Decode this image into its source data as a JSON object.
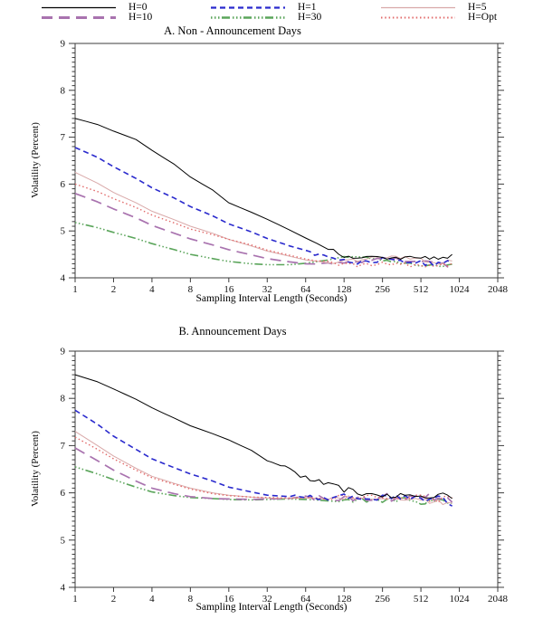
{
  "page": {
    "background": "#ffffff"
  },
  "legend": {
    "items": [
      {
        "id": "h0",
        "label": "H=0",
        "color": "#000000",
        "dash": "solid"
      },
      {
        "id": "h10",
        "label": "H=10",
        "color": "#A973AF",
        "dash": "longdash"
      },
      {
        "id": "h1",
        "label": "H=1",
        "color": "#2A2ACD",
        "dash": "dash"
      },
      {
        "id": "h30",
        "label": "H=30",
        "color": "#5BA55B",
        "dash": "dashdotdot"
      },
      {
        "id": "h5",
        "label": "H=5",
        "color": "#D9A9A9",
        "dash": "solid_thin"
      },
      {
        "id": "hopt",
        "label": "H=Opt",
        "color": "#E26A6A",
        "dash": "dot"
      }
    ]
  },
  "chart_data": [
    {
      "type": "line",
      "title": "A. Non - Announcement Days",
      "xlabel": "Sampling Interval Length (Seconds)",
      "ylabel": "Volatility (Percent)",
      "xscale": "log2",
      "xlim": [
        1,
        2048
      ],
      "ylim": [
        4,
        9
      ],
      "xticks": [
        1,
        2,
        4,
        8,
        16,
        32,
        64,
        128,
        256,
        512,
        1024,
        2048
      ],
      "yticks": [
        4,
        5,
        6,
        7,
        8,
        9
      ],
      "y_minor_step": 0.1,
      "grid": false,
      "legend_position": "top",
      "x": [
        1,
        1.5,
        2,
        3,
        4,
        6,
        8,
        12,
        16,
        24,
        32,
        48,
        64,
        96,
        128,
        192,
        256,
        384,
        512,
        700,
        900
      ],
      "series": [
        {
          "name": "H=0",
          "color": "#000000",
          "dash": "solid",
          "noise_from": 90,
          "noise_amp": 0.04,
          "values": [
            7.4,
            7.27,
            7.13,
            6.95,
            6.72,
            6.42,
            6.15,
            5.87,
            5.6,
            5.4,
            5.25,
            5.02,
            4.85,
            4.62,
            4.47,
            4.42,
            4.45,
            4.4,
            4.44,
            4.38,
            4.5
          ]
        },
        {
          "name": "H=1",
          "color": "#2A2ACD",
          "dash": "dash",
          "noise_from": 56,
          "noise_amp": 0.04,
          "values": [
            6.78,
            6.57,
            6.37,
            6.12,
            5.92,
            5.7,
            5.52,
            5.32,
            5.15,
            4.98,
            4.84,
            4.68,
            4.55,
            4.43,
            4.35,
            4.32,
            4.4,
            4.35,
            4.32,
            4.28,
            4.33
          ]
        },
        {
          "name": "H=5",
          "color": "#D9A9A9",
          "dash": "solid_thin",
          "noise_from": 96,
          "noise_amp": 0.03,
          "values": [
            6.25,
            6.02,
            5.82,
            5.6,
            5.42,
            5.24,
            5.1,
            4.95,
            4.82,
            4.68,
            4.57,
            4.46,
            4.38,
            4.33,
            4.35,
            4.4,
            4.45,
            4.42,
            4.38,
            4.32,
            4.36
          ]
        },
        {
          "name": "H=10",
          "color": "#A973AF",
          "dash": "longdash",
          "noise_from": 96,
          "noise_amp": 0.03,
          "values": [
            5.8,
            5.62,
            5.47,
            5.28,
            5.12,
            4.95,
            4.83,
            4.7,
            4.6,
            4.49,
            4.41,
            4.34,
            4.3,
            4.29,
            4.32,
            4.36,
            4.41,
            4.38,
            4.34,
            4.29,
            4.27
          ]
        },
        {
          "name": "H=30",
          "color": "#5BA55B",
          "dash": "dashdotdot",
          "noise_from": 128,
          "noise_amp": 0.03,
          "values": [
            5.18,
            5.07,
            4.97,
            4.84,
            4.73,
            4.6,
            4.5,
            4.41,
            4.35,
            4.3,
            4.28,
            4.28,
            4.31,
            4.38,
            4.44,
            4.45,
            4.37,
            4.3,
            4.27,
            4.26,
            4.29
          ]
        },
        {
          "name": "H=Opt",
          "color": "#E26A6A",
          "dash": "dot",
          "noise_from": 96,
          "noise_amp": 0.04,
          "values": [
            6.0,
            5.84,
            5.69,
            5.5,
            5.34,
            5.17,
            5.04,
            4.92,
            4.82,
            4.7,
            4.59,
            4.48,
            4.4,
            4.32,
            4.28,
            4.27,
            4.33,
            4.29,
            4.27,
            4.25,
            4.31
          ]
        }
      ]
    },
    {
      "type": "line",
      "title": "B. Announcement Days",
      "xlabel": "Sampling Interval Length (Seconds)",
      "ylabel": "Volatility (Percent)",
      "xscale": "log2",
      "xlim": [
        1,
        2048
      ],
      "ylim": [
        4,
        9
      ],
      "xticks": [
        1,
        2,
        4,
        8,
        16,
        32,
        64,
        128,
        256,
        512,
        1024,
        2048
      ],
      "yticks": [
        4,
        5,
        6,
        7,
        8,
        9
      ],
      "y_minor_step": 0.1,
      "grid": false,
      "legend_position": "top",
      "x": [
        1,
        1.5,
        2,
        3,
        4,
        6,
        8,
        12,
        16,
        24,
        32,
        48,
        64,
        96,
        128,
        192,
        256,
        384,
        512,
        700,
        900
      ],
      "series": [
        {
          "name": "H=0",
          "color": "#000000",
          "dash": "solid",
          "noise_from": 32,
          "noise_amp": 0.045,
          "values": [
            8.5,
            8.35,
            8.2,
            7.98,
            7.8,
            7.58,
            7.42,
            7.25,
            7.12,
            6.9,
            6.72,
            6.5,
            6.32,
            6.17,
            6.07,
            5.98,
            5.94,
            5.96,
            5.92,
            5.96,
            5.88
          ]
        },
        {
          "name": "H=1",
          "color": "#2A2ACD",
          "dash": "dash",
          "noise_from": 48,
          "noise_amp": 0.05,
          "values": [
            7.75,
            7.45,
            7.2,
            6.92,
            6.72,
            6.53,
            6.4,
            6.25,
            6.12,
            6.02,
            5.95,
            5.92,
            5.91,
            5.9,
            5.92,
            5.9,
            5.89,
            5.92,
            5.88,
            5.9,
            5.72
          ]
        },
        {
          "name": "H=5",
          "color": "#D9A9A9",
          "dash": "solid_thin",
          "noise_from": 96,
          "noise_amp": 0.04,
          "values": [
            7.3,
            7.0,
            6.78,
            6.52,
            6.35,
            6.2,
            6.1,
            6.0,
            5.95,
            5.91,
            5.89,
            5.88,
            5.89,
            5.88,
            5.9,
            5.87,
            5.85,
            5.88,
            5.82,
            5.8,
            5.78
          ]
        },
        {
          "name": "H=10",
          "color": "#A973AF",
          "dash": "longdash",
          "noise_from": 64,
          "noise_amp": 0.06,
          "values": [
            6.95,
            6.68,
            6.48,
            6.25,
            6.1,
            5.98,
            5.92,
            5.88,
            5.87,
            5.86,
            5.87,
            5.88,
            5.9,
            5.88,
            5.86,
            5.9,
            5.92,
            5.85,
            5.9,
            5.94,
            5.8
          ]
        },
        {
          "name": "H=30",
          "color": "#5BA55B",
          "dash": "dashdotdot",
          "noise_from": 96,
          "noise_amp": 0.04,
          "values": [
            6.55,
            6.4,
            6.28,
            6.12,
            6.02,
            5.94,
            5.9,
            5.88,
            5.86,
            5.85,
            5.86,
            5.87,
            5.86,
            5.84,
            5.85,
            5.84,
            5.82,
            5.86,
            5.8,
            5.84,
            5.78
          ]
        },
        {
          "name": "H=Opt",
          "color": "#E26A6A",
          "dash": "dot",
          "noise_from": 80,
          "noise_amp": 0.05,
          "values": [
            7.18,
            6.92,
            6.72,
            6.48,
            6.32,
            6.18,
            6.08,
            5.98,
            5.94,
            5.91,
            5.9,
            5.89,
            5.9,
            5.88,
            5.9,
            5.91,
            5.88,
            5.9,
            5.92,
            5.85,
            5.89
          ]
        }
      ]
    }
  ]
}
